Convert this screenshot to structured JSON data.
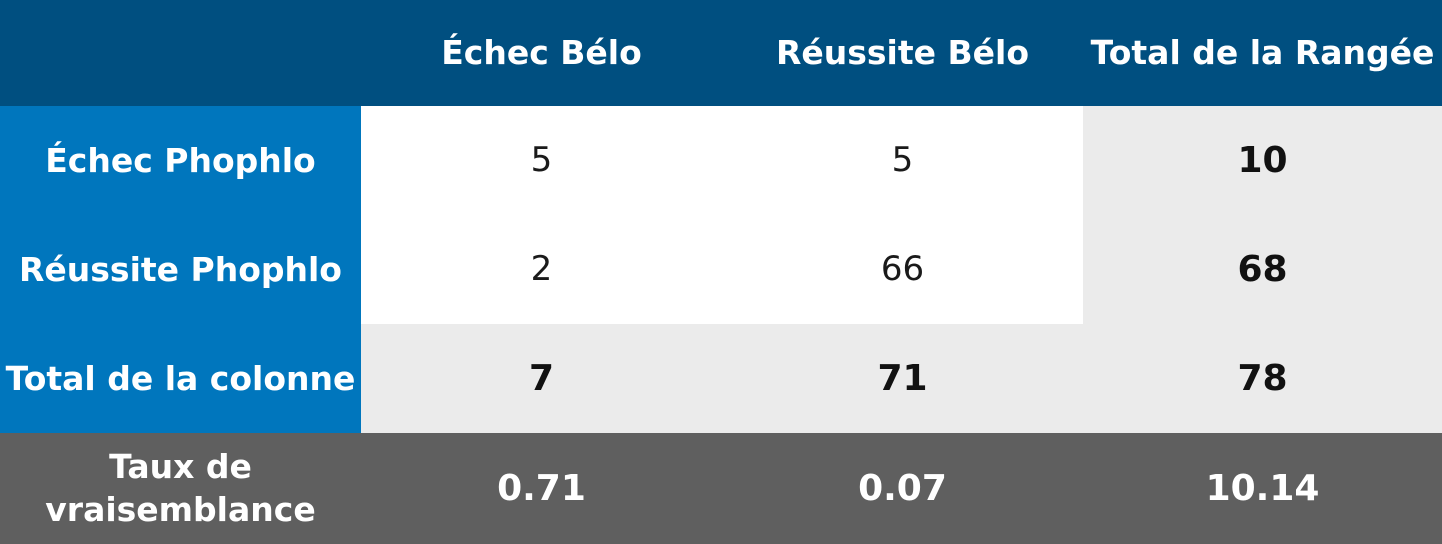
{
  "chart_data": {
    "type": "table",
    "columns": [
      "Échec Bélo",
      "Réussite Bélo",
      "Total de la Rangée"
    ],
    "rows": [
      {
        "label": "Échec Phophlo",
        "values": [
          5,
          5,
          10
        ]
      },
      {
        "label": "Réussite Phophlo",
        "values": [
          2,
          66,
          68
        ]
      },
      {
        "label": "Total de la colonne",
        "values": [
          7,
          71,
          78
        ]
      },
      {
        "label": "Taux de vraisemblance",
        "values": [
          "0.71",
          "0.07",
          "10.14"
        ]
      }
    ]
  },
  "colors": {
    "header": "#004f80",
    "row_header": "#0076bd",
    "totals": "#ebebeb",
    "likelihood_row": "#5f5f5f"
  }
}
